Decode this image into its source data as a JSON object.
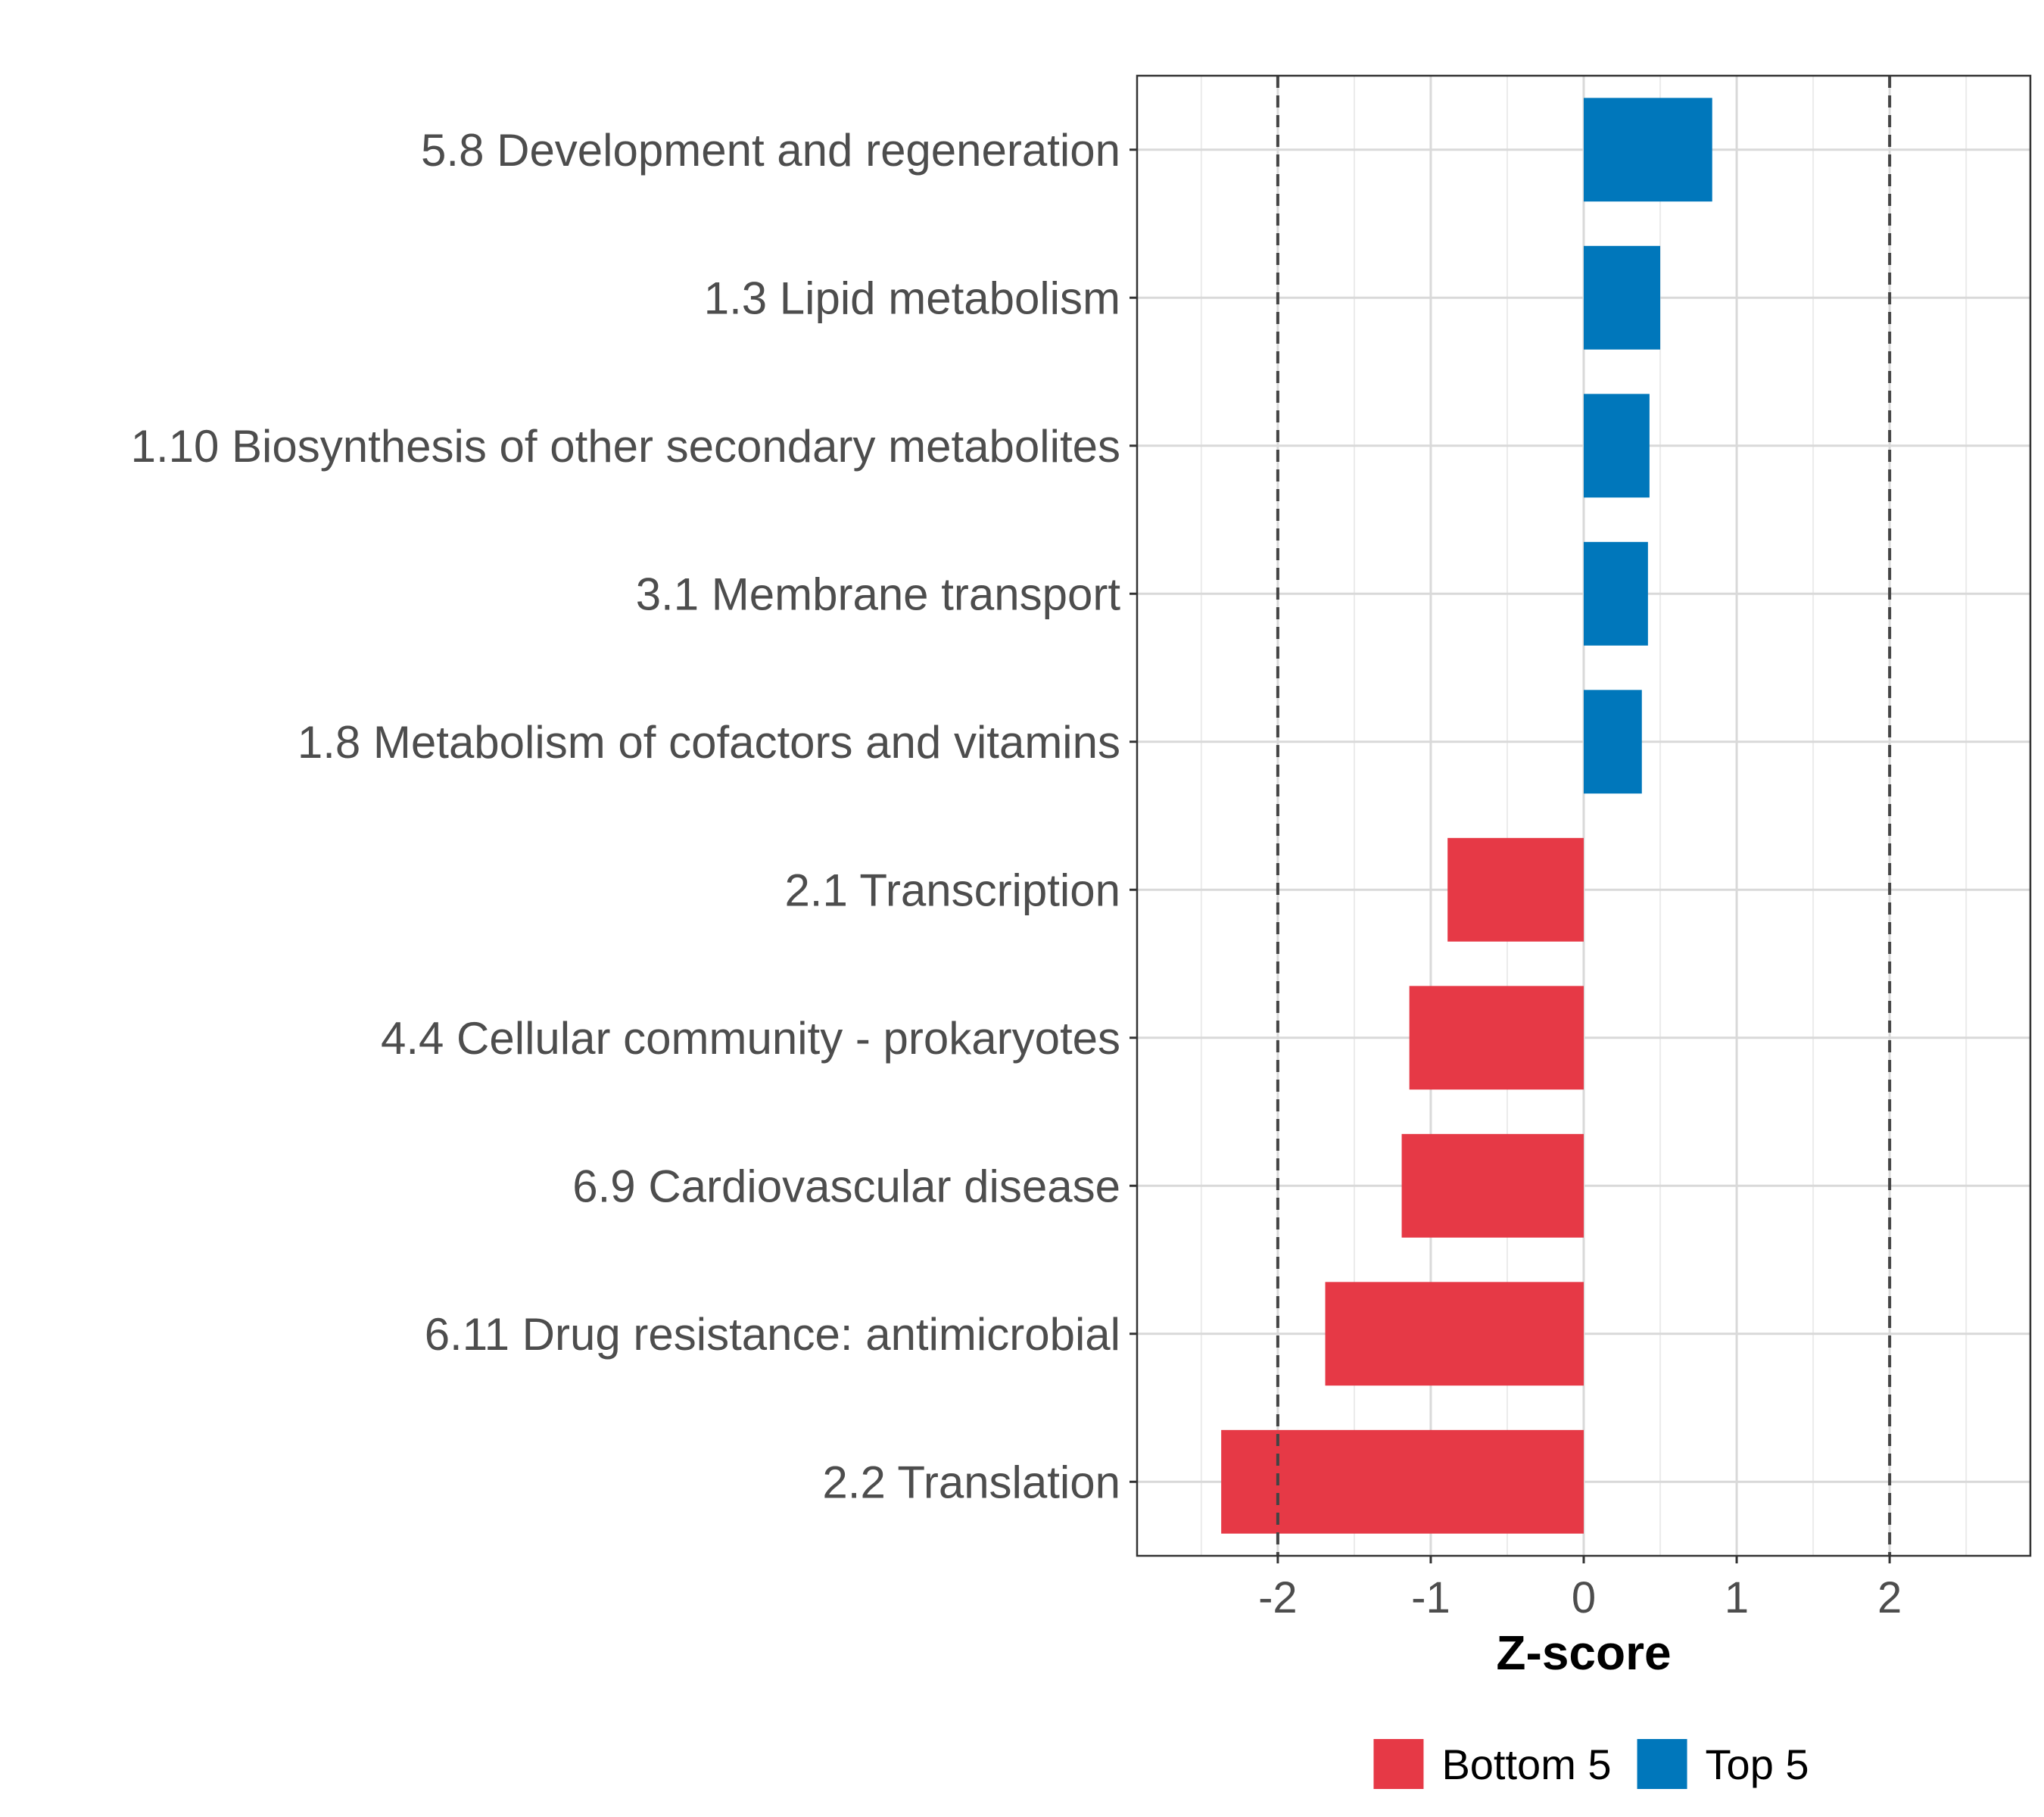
{
  "chart_data": {
    "type": "bar",
    "orientation": "horizontal",
    "title": "",
    "xlabel": "Z-score",
    "ylabel": "",
    "xlim": [
      -2.92,
      2.92
    ],
    "xticks": [
      -2,
      -1,
      0,
      1,
      2
    ],
    "xtick_labels": [
      "-2",
      "-1",
      "0",
      "1",
      "2"
    ],
    "reference_lines": [
      -2,
      2
    ],
    "grid": true,
    "categories": [
      "5.8 Development and regeneration",
      "1.3 Lipid metabolism",
      "1.10 Biosynthesis of other secondary metabolites",
      "3.1 Membrane transport",
      "1.8 Metabolism of cofactors and vitamins",
      "2.1 Transcription",
      "4.4 Cellular community - prokaryotes",
      "6.9 Cardiovascular disease",
      "6.11 Drug resistance: antimicrobial",
      "2.2 Translation"
    ],
    "values": [
      0.84,
      0.5,
      0.43,
      0.42,
      0.38,
      -0.89,
      -1.14,
      -1.19,
      -1.69,
      -2.37
    ],
    "groups": [
      "Top 5",
      "Top 5",
      "Top 5",
      "Top 5",
      "Top 5",
      "Bottom 5",
      "Bottom 5",
      "Bottom 5",
      "Bottom 5",
      "Bottom 5"
    ],
    "legend": {
      "position": "bottom",
      "entries": [
        {
          "label": "Bottom 5",
          "color": "#e63946"
        },
        {
          "label": "Top 5",
          "color": "#0077bb"
        }
      ]
    }
  }
}
